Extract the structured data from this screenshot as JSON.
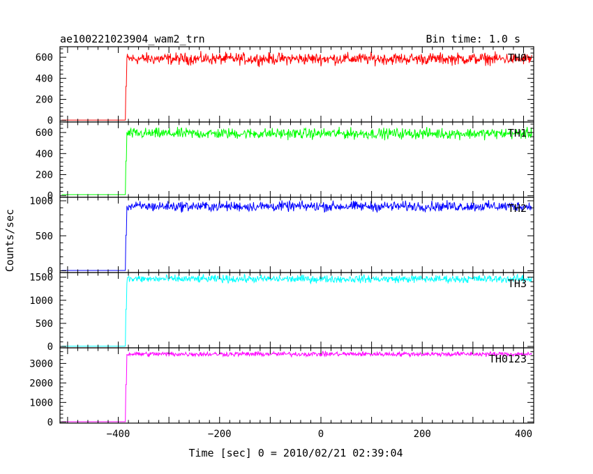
{
  "chart_data": {
    "type": "line",
    "title": "ae100221023904_wam2_trn",
    "subtitle": "Bin time: 1.0 s",
    "xlabel": "Time [sec] 0 = 2010/02/21 02:39:04",
    "ylabel": "Counts/sec",
    "xlim": [
      -515,
      420
    ],
    "x_ticks": [
      -400,
      -200,
      0,
      200,
      400
    ],
    "x_tick_labels": [
      "−400",
      "−200",
      "0",
      "200",
      "400"
    ],
    "onset_time": -385,
    "panels": [
      {
        "name": "TH0",
        "color": "#ff0000",
        "ylim": [
          -15,
          700
        ],
        "yticks": [
          0,
          200,
          400,
          600
        ],
        "ytick_labels": [
          "0",
          "200",
          "400",
          "600"
        ],
        "baseline": 3,
        "level": 585,
        "noise": 55
      },
      {
        "name": "TH1",
        "color": "#00ff00",
        "ylim": [
          -15,
          700
        ],
        "yticks": [
          0,
          200,
          400,
          600
        ],
        "ytick_labels": [
          "0",
          "200",
          "400",
          "600"
        ],
        "baseline": 10,
        "level": 590,
        "noise": 50
      },
      {
        "name": "TH2",
        "color": "#0000ff",
        "ylim": [
          -25,
          1050
        ],
        "yticks": [
          0,
          500,
          1000
        ],
        "ytick_labels": [
          "0",
          "500",
          "1000"
        ],
        "baseline": 5,
        "level": 920,
        "noise": 70
      },
      {
        "name": "TH3",
        "color": "#00ffff",
        "ylim": [
          -30,
          1600
        ],
        "yticks": [
          0,
          500,
          1000,
          1500
        ],
        "ytick_labels": [
          "0",
          "500",
          "1000",
          "1500"
        ],
        "baseline": 5,
        "level": 1460,
        "noise": 80
      },
      {
        "name": "TH0123",
        "color": "#ff00ff",
        "ylim": [
          -60,
          3800
        ],
        "yticks": [
          0,
          1000,
          2000,
          3000
        ],
        "ytick_labels": [
          "0",
          "1000",
          "2000",
          "3000"
        ],
        "baseline": 10,
        "level": 3480,
        "noise": 120
      }
    ]
  }
}
